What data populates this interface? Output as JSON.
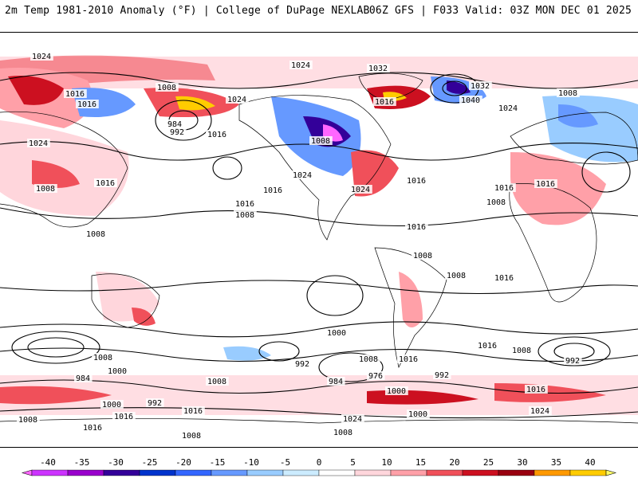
{
  "header": {
    "left_title": "2m Temp 1981-2010 Anomaly (°F) | College of DuPage NEXLAB",
    "right_title": "06Z GFS | F033 Valid: 03Z MON DEC 01 2025"
  },
  "map": {
    "projection": "global-cylindrical",
    "background": "#ffffff",
    "land_outline_color": "#000000",
    "isobar_color": "#000000",
    "isobar_labels": [
      "1024",
      "1024",
      "1032",
      "1008",
      "1016",
      "1016",
      "1024",
      "1040",
      "1032",
      "1016",
      "1008",
      "984",
      "992",
      "1016",
      "1024",
      "1016",
      "1024",
      "1016",
      "1024",
      "1008",
      "1024",
      "1016",
      "1008",
      "1016",
      "1008",
      "1016",
      "1008",
      "1008",
      "1016",
      "1016",
      "1016",
      "1008",
      "1008",
      "1016",
      "1000",
      "1008",
      "1016",
      "992",
      "1008",
      "984",
      "1000",
      "992",
      "1000",
      "1016",
      "976",
      "984",
      "992",
      "1000",
      "992",
      "1016",
      "1008",
      "1016",
      "1024",
      "1008",
      "1016",
      "1000",
      "1024",
      "1016",
      "1008",
      "1008",
      "1008"
    ]
  },
  "colorbar": {
    "ticks": [
      "-40",
      "-35",
      "-30",
      "-25",
      "-20",
      "-15",
      "-10",
      "-5",
      "0",
      "5",
      "10",
      "15",
      "20",
      "25",
      "30",
      "35",
      "40"
    ],
    "colors": [
      "#ff66ff",
      "#cc33ff",
      "#9900cc",
      "#330099",
      "#0033cc",
      "#3366ff",
      "#6699ff",
      "#99ccff",
      "#ccecff",
      "#ffffff",
      "#ffd6dc",
      "#ffa0a8",
      "#f0505a",
      "#cc1020",
      "#990010",
      "#ff9900",
      "#ffcc00",
      "#ffff66"
    ]
  }
}
